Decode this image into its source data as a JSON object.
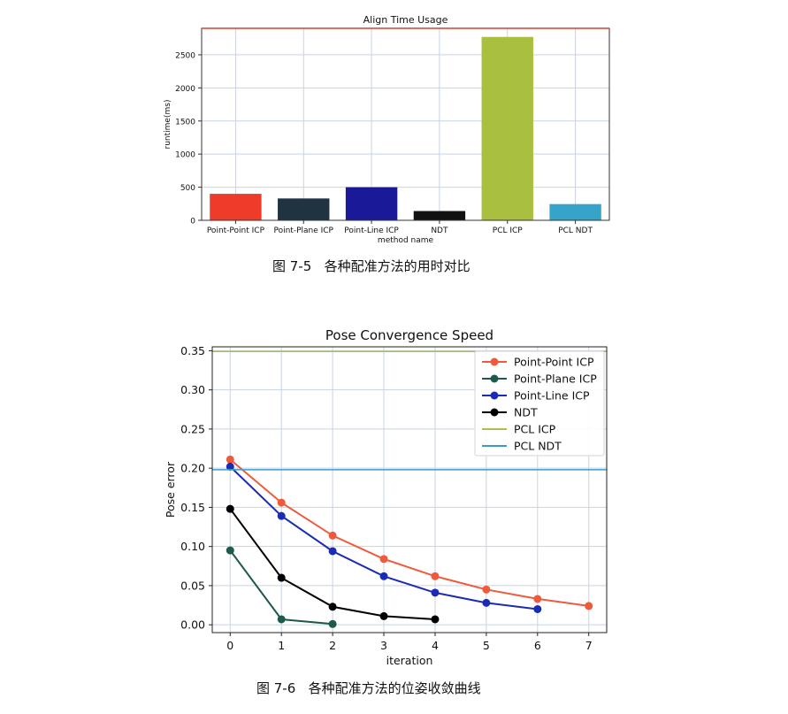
{
  "captions": {
    "fig1": "图 7-5   各种配准方法的用时对比",
    "fig2": "图 7-6   各种配准方法的位姿收敛曲线"
  },
  "chart_data": [
    {
      "type": "bar",
      "title": "Align Time Usage",
      "xlabel": "method name",
      "ylabel": "runtime(ms)",
      "ylim": [
        0,
        2900
      ],
      "yticks": [
        0,
        500,
        1000,
        1500,
        2000,
        2500
      ],
      "grid": true,
      "categories": [
        "Point-Point ICP",
        "Point-Plane ICP",
        "Point-Line ICP",
        "NDT",
        "PCL ICP",
        "PCL NDT"
      ],
      "values": [
        400,
        330,
        500,
        140,
        2770,
        245
      ],
      "colors": [
        "#ee3b2a",
        "#1f3340",
        "#1a1a99",
        "#111111",
        "#a9bf3f",
        "#36a3c9"
      ]
    },
    {
      "type": "line",
      "title": "Pose Convergence Speed",
      "xlabel": "iteration",
      "ylabel": "Pose error",
      "xlim": [
        -0.35,
        7.35
      ],
      "ylim": [
        -0.01,
        0.355
      ],
      "xticks": [
        0,
        1,
        2,
        3,
        4,
        5,
        6,
        7
      ],
      "yticks": [
        0.0,
        0.05,
        0.1,
        0.15,
        0.2,
        0.25,
        0.3,
        0.35
      ],
      "grid": true,
      "legend_position": "top-right",
      "series": [
        {
          "name": "Point-Point ICP",
          "color": "#ee5a3c",
          "marker": true,
          "x": [
            0,
            1,
            2,
            3,
            4,
            5,
            6,
            7
          ],
          "y": [
            0.211,
            0.156,
            0.114,
            0.084,
            0.062,
            0.045,
            0.033,
            0.024
          ]
        },
        {
          "name": "Point-Plane ICP",
          "color": "#1d5a4b",
          "marker": true,
          "x": [
            0,
            1,
            2
          ],
          "y": [
            0.095,
            0.007,
            0.001
          ]
        },
        {
          "name": "Point-Line ICP",
          "color": "#1b2bb5",
          "marker": true,
          "x": [
            0,
            1,
            2,
            3,
            4,
            5,
            6
          ],
          "y": [
            0.202,
            0.139,
            0.094,
            0.062,
            0.041,
            0.028,
            0.02
          ]
        },
        {
          "name": "NDT",
          "color": "#000000",
          "marker": true,
          "x": [
            0,
            1,
            2,
            3,
            4
          ],
          "y": [
            0.148,
            0.06,
            0.023,
            0.011,
            0.007
          ]
        },
        {
          "name": "PCL ICP",
          "color": "#aac24a",
          "marker": false,
          "x": [
            -0.35,
            7.35
          ],
          "y": [
            0.349,
            0.349
          ]
        },
        {
          "name": "PCL NDT",
          "color": "#3a9fc8",
          "marker": false,
          "x": [
            -0.35,
            7.35
          ],
          "y": [
            0.198,
            0.198
          ]
        }
      ]
    }
  ]
}
